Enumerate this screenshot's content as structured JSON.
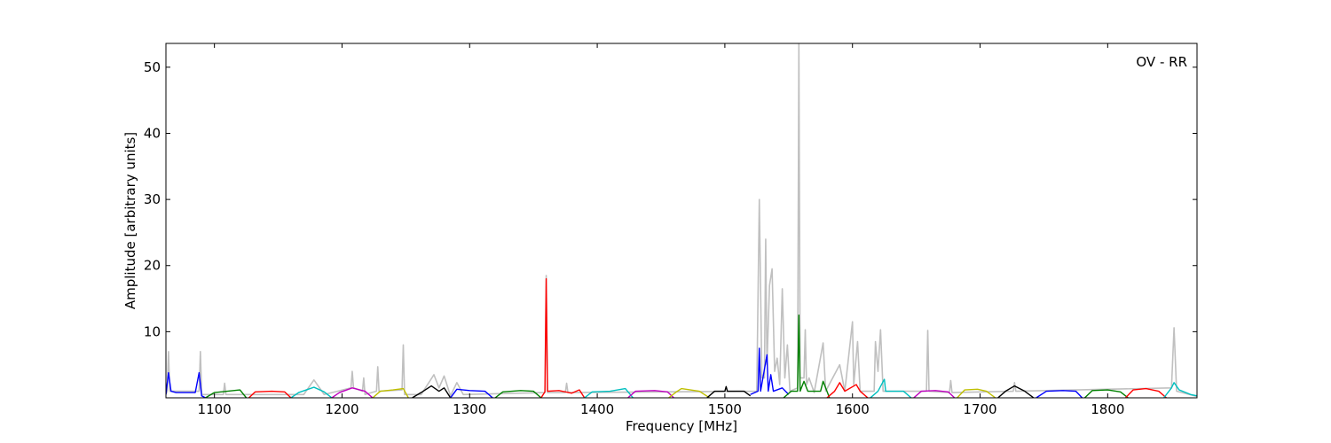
{
  "chart_data": {
    "type": "line",
    "xlabel": "Frequency [MHz]",
    "ylabel": "Amplitude [arbitrary units]",
    "annotation": "OV - RR",
    "xlim": [
      1062,
      1870
    ],
    "ylim": [
      0,
      53.6
    ],
    "xticks": [
      1100,
      1200,
      1300,
      1400,
      1500,
      1600,
      1700,
      1800
    ],
    "yticks": [
      10,
      20,
      30,
      40,
      50
    ],
    "series": [
      {
        "color": "#c0c0c0",
        "x": [
          1062,
          1063,
          1064,
          1065,
          1088,
          1089,
          1090,
          1107,
          1108,
          1109,
          1170,
          1178,
          1186,
          1207,
          1208,
          1209,
          1216,
          1217,
          1218,
          1227,
          1228,
          1229,
          1247,
          1248,
          1249,
          1262,
          1272,
          1276,
          1280,
          1285,
          1290,
          1295,
          1359,
          1360,
          1361,
          1375,
          1376,
          1377,
          1525,
          1527,
          1529,
          1531,
          1532,
          1533,
          1535,
          1537,
          1539,
          1541,
          1543,
          1545,
          1547,
          1549,
          1551,
          1557,
          1558,
          1559,
          1562,
          1563,
          1564,
          1566,
          1570,
          1577,
          1579,
          1590,
          1594,
          1600,
          1601,
          1604,
          1606,
          1617,
          1618,
          1620,
          1622,
          1624,
          1658,
          1659,
          1660,
          1676,
          1677,
          1678,
          1726,
          1727,
          1728,
          1850,
          1852,
          1854,
          1870
        ],
        "values": [
          0.5,
          1,
          7,
          1,
          1,
          7,
          0.5,
          0.5,
          2.2,
          0.5,
          0.5,
          2.7,
          0.5,
          1.5,
          4,
          1.5,
          1,
          3,
          0.5,
          1,
          4.7,
          1,
          1.2,
          8,
          0.5,
          0.5,
          3.5,
          1.5,
          3.3,
          0.3,
          2.3,
          0.5,
          0.8,
          18.5,
          0.8,
          0.8,
          2.2,
          0.8,
          1,
          30,
          3,
          3,
          24,
          5,
          17,
          19.5,
          4,
          6,
          2,
          16.5,
          3,
          8,
          1,
          1.5,
          53.5,
          3,
          3,
          10.3,
          2,
          3,
          0.8,
          8.3,
          1,
          5,
          1,
          11.5,
          2,
          8.5,
          1,
          1,
          8.5,
          4,
          10.3,
          1,
          1,
          10.2,
          1,
          0.8,
          2.6,
          0.8,
          1,
          2.3,
          1,
          1.5,
          10.6,
          1,
          0.2
        ]
      },
      {
        "color": "#0000ff",
        "x": [
          1062,
          1064,
          1066,
          1070,
          1085,
          1088,
          1090,
          1093
        ],
        "values": [
          0.5,
          3.8,
          1,
          0.8,
          0.8,
          3.8,
          0.3,
          0
        ]
      },
      {
        "color": "#008000",
        "x": [
          1093,
          1100,
          1110,
          1120,
          1125
        ],
        "values": [
          0,
          0.8,
          1,
          1.2,
          0
        ]
      },
      {
        "color": "#ff0000",
        "x": [
          1127,
          1132,
          1145,
          1155,
          1160
        ],
        "values": [
          0,
          0.9,
          1,
          0.9,
          0
        ]
      },
      {
        "color": "#00bfbf",
        "x": [
          1160,
          1166,
          1178,
          1186,
          1192
        ],
        "values": [
          0,
          0.8,
          1.6,
          0.9,
          0
        ]
      },
      {
        "color": "#bf00bf",
        "x": [
          1192,
          1198,
          1208,
          1218,
          1224
        ],
        "values": [
          0,
          0.8,
          1.5,
          1,
          0
        ]
      },
      {
        "color": "#bfbf00",
        "x": [
          1224,
          1230,
          1240,
          1248,
          1252
        ],
        "values": [
          0,
          1,
          1.2,
          1.4,
          0
        ]
      },
      {
        "color": "#000000",
        "x": [
          1255,
          1262,
          1270,
          1276,
          1280,
          1285
        ],
        "values": [
          0,
          0.8,
          1.8,
          1,
          1.5,
          0
        ]
      },
      {
        "color": "#0000ff",
        "x": [
          1285,
          1290,
          1300,
          1312,
          1318
        ],
        "values": [
          0,
          1.3,
          1.1,
          1,
          0
        ]
      },
      {
        "color": "#008000",
        "x": [
          1320,
          1326,
          1340,
          1350,
          1356
        ],
        "values": [
          0,
          0.9,
          1.1,
          1,
          0
        ]
      },
      {
        "color": "#ff0000",
        "x": [
          1356,
          1359,
          1360,
          1361,
          1370,
          1380,
          1386,
          1390
        ],
        "values": [
          0,
          0.9,
          18,
          1,
          1.1,
          0.7,
          1.2,
          0
        ]
      },
      {
        "color": "#00bfbf",
        "x": [
          1390,
          1396,
          1410,
          1422,
          1428
        ],
        "values": [
          0,
          0.9,
          1,
          1.4,
          0
        ]
      },
      {
        "color": "#bf00bf",
        "x": [
          1424,
          1430,
          1445,
          1455,
          1460
        ],
        "values": [
          0,
          1,
          1.1,
          0.9,
          0
        ]
      },
      {
        "color": "#bfbf00",
        "x": [
          1456,
          1462,
          1466,
          1480,
          1488
        ],
        "values": [
          0,
          0.9,
          1.4,
          1,
          0
        ]
      },
      {
        "color": "#000000",
        "x": [
          1486,
          1492,
          1500,
          1501,
          1502,
          1515,
          1520
        ],
        "values": [
          0,
          1,
          1,
          1.7,
          1,
          1,
          0.3
        ]
      },
      {
        "color": "#0000ff",
        "x": [
          1520,
          1526,
          1527,
          1528,
          1533,
          1534,
          1536,
          1538,
          1545,
          1550
        ],
        "values": [
          0.5,
          1,
          7.5,
          1,
          6.5,
          1,
          3.5,
          1,
          1.5,
          0.5
        ]
      },
      {
        "color": "#008000",
        "x": [
          1546,
          1552,
          1557,
          1558,
          1559,
          1562,
          1565,
          1575,
          1577,
          1582
        ],
        "values": [
          0,
          1,
          1,
          12.5,
          1,
          2.5,
          1,
          1,
          2.5,
          0
        ]
      },
      {
        "color": "#ff0000",
        "x": [
          1580,
          1586,
          1590,
          1594,
          1603,
          1606,
          1612
        ],
        "values": [
          0,
          1,
          2.3,
          1,
          2,
          1,
          0
        ]
      },
      {
        "color": "#00bfbf",
        "x": [
          1614,
          1620,
          1625,
          1626,
          1640,
          1646
        ],
        "values": [
          0,
          1,
          2.8,
          1,
          1,
          0
        ]
      },
      {
        "color": "#bf00bf",
        "x": [
          1648,
          1654,
          1665,
          1675,
          1680
        ],
        "values": [
          0,
          1,
          1.1,
          0.9,
          0
        ]
      },
      {
        "color": "#bfbf00",
        "x": [
          1682,
          1688,
          1698,
          1705,
          1712
        ],
        "values": [
          0,
          1.2,
          1.3,
          1,
          0
        ]
      },
      {
        "color": "#000000",
        "x": [
          1714,
          1720,
          1727,
          1735,
          1742
        ],
        "values": [
          0,
          1,
          1.8,
          1,
          0
        ]
      },
      {
        "color": "#0000ff",
        "x": [
          1744,
          1752,
          1765,
          1775,
          1780
        ],
        "values": [
          0,
          1,
          1.1,
          1,
          0
        ]
      },
      {
        "color": "#008000",
        "x": [
          1782,
          1788,
          1800,
          1810,
          1816
        ],
        "values": [
          0,
          1.1,
          1.2,
          0.9,
          0
        ]
      },
      {
        "color": "#ff0000",
        "x": [
          1814,
          1820,
          1830,
          1840,
          1846
        ],
        "values": [
          0,
          1.2,
          1.4,
          1,
          0
        ]
      },
      {
        "color": "#00bfbf",
        "x": [
          1844,
          1850,
          1852,
          1856,
          1865,
          1870
        ],
        "values": [
          0,
          1.5,
          2.3,
          1.2,
          0.5,
          0.3
        ]
      }
    ]
  }
}
